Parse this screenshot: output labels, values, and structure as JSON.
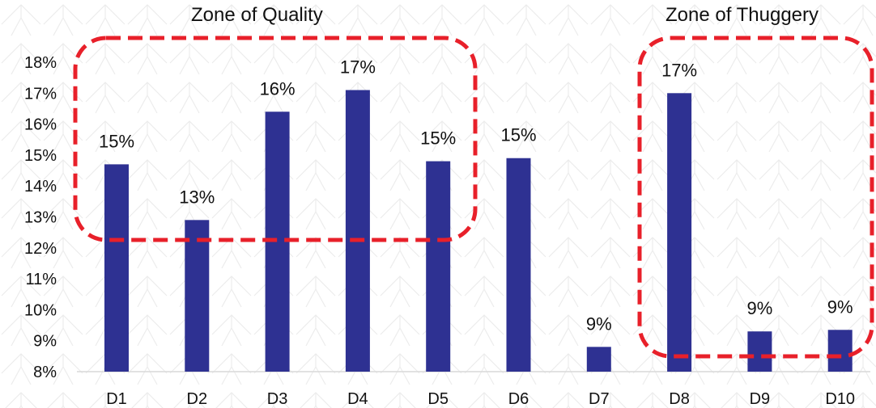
{
  "chart_data": {
    "type": "bar",
    "categories": [
      "D1",
      "D2",
      "D3",
      "D4",
      "D5",
      "D6",
      "D7",
      "D8",
      "D9",
      "D10"
    ],
    "values": [
      14.7,
      12.9,
      16.4,
      17.1,
      14.8,
      14.9,
      8.8,
      17.0,
      9.3,
      9.35
    ],
    "data_labels": [
      "15%",
      "13%",
      "16%",
      "17%",
      "15%",
      "15%",
      "9%",
      "17%",
      "9%",
      "9%"
    ],
    "ylim": [
      8,
      18
    ],
    "yticks": [
      8,
      9,
      10,
      11,
      12,
      13,
      14,
      15,
      16,
      17,
      18
    ],
    "ytick_labels": [
      "8%",
      "9%",
      "10%",
      "11%",
      "12%",
      "13%",
      "14%",
      "15%",
      "16%",
      "17%",
      "18%"
    ],
    "title": "",
    "xlabel": "",
    "ylabel": "",
    "grid": false,
    "bar_color": "#2e3192",
    "annotations": [
      {
        "text": "Zone of Quality",
        "categories": [
          "D1",
          "D5"
        ]
      },
      {
        "text": "Zone of Thuggery",
        "categories": [
          "D8",
          "D10"
        ]
      }
    ],
    "annotation_box_color": "#e8202a"
  }
}
